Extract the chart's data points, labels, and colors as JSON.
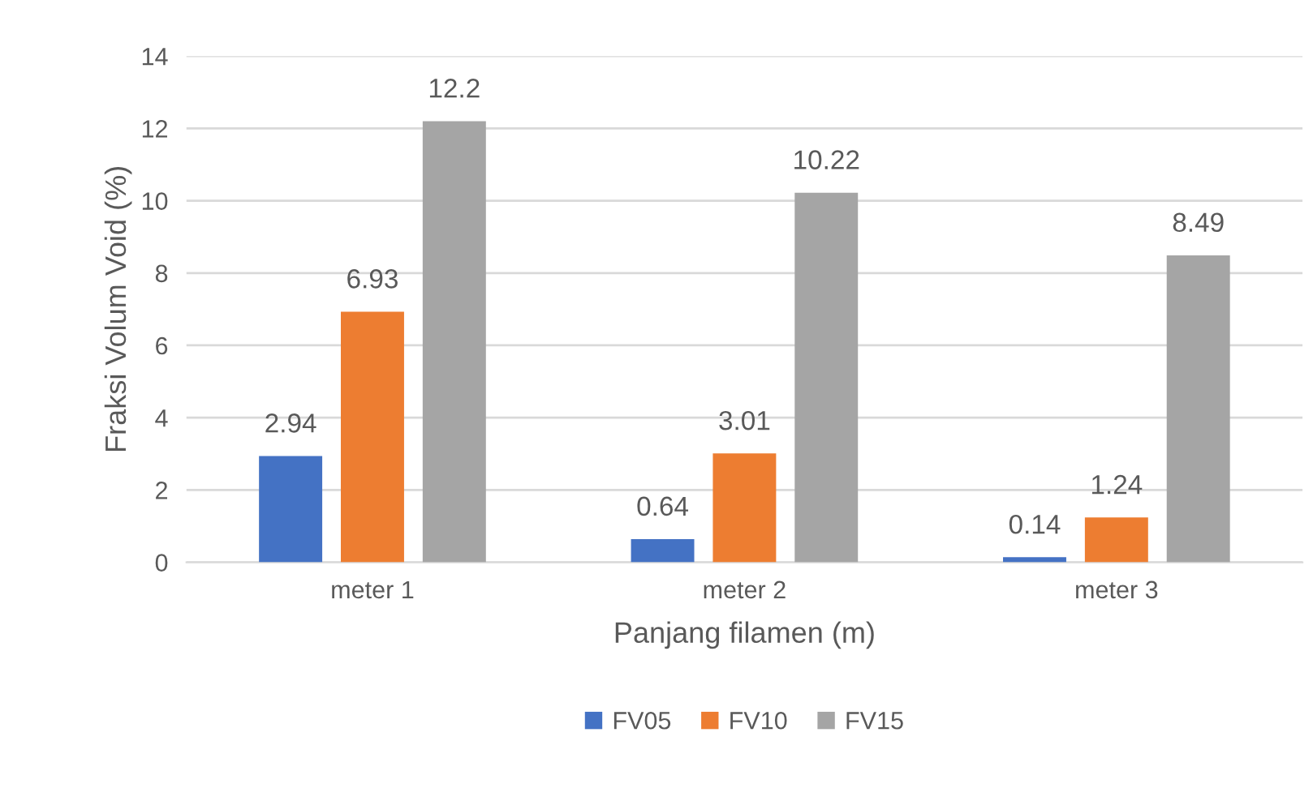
{
  "chart_data": {
    "type": "bar",
    "xlabel": "Panjang filamen (m)",
    "ylabel": "Fraksi Volum Void (%)",
    "categories": [
      "meter 1",
      "meter 2",
      "meter 3"
    ],
    "series": [
      {
        "name": "FV05",
        "color": "#4472c4",
        "values": [
          2.94,
          0.64,
          0.14
        ]
      },
      {
        "name": "FV10",
        "color": "#ed7d31",
        "values": [
          6.93,
          3.01,
          1.24
        ]
      },
      {
        "name": "FV15",
        "color": "#a5a5a5",
        "values": [
          12.2,
          10.22,
          8.49
        ]
      }
    ],
    "ylim": [
      0,
      14
    ],
    "yticks": [
      0,
      2,
      4,
      6,
      8,
      10,
      12,
      14
    ],
    "grid": "y",
    "legend": "bottom",
    "data_labels": true
  }
}
